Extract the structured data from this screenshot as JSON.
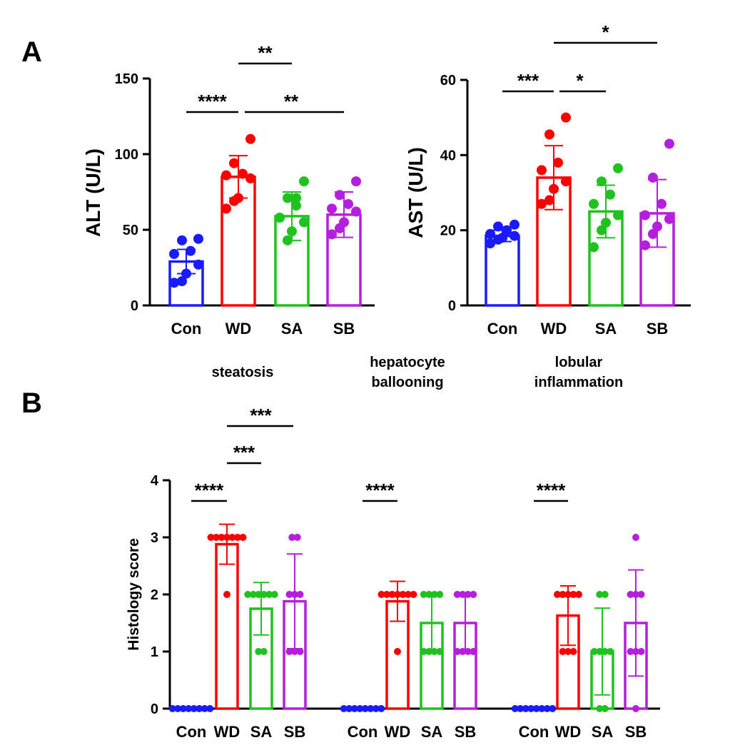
{
  "panels": {
    "a": "A",
    "b": "B"
  },
  "colors": {
    "Con": "#1a1aff",
    "WD": "#ff0000",
    "SA": "#1fc21f",
    "SB": "#b41edc"
  },
  "chart_data": [
    {
      "type": "bar",
      "panel": "A",
      "ylabel": "ALT (U/L)",
      "ylim": [
        0,
        150
      ],
      "yticks": [
        "0",
        "50",
        "100",
        "150"
      ],
      "categories": [
        "Con",
        "WD",
        "SA",
        "SB"
      ],
      "values": [
        29,
        85,
        59,
        60
      ],
      "sd": [
        8,
        14,
        16,
        15
      ],
      "points": [
        [
          44,
          43,
          36,
          34,
          27,
          21,
          16,
          15
        ],
        [
          110,
          94,
          87,
          86,
          84,
          71,
          69,
          64
        ],
        [
          82,
          71,
          71,
          66,
          58,
          55,
          49,
          43
        ],
        [
          82,
          73,
          67,
          64,
          62,
          55,
          51,
          47
        ]
      ],
      "significance": [
        {
          "from": "Con",
          "to": "WD",
          "label": "****"
        },
        {
          "from": "WD",
          "to": "SA",
          "label": "**"
        },
        {
          "from": "WD",
          "to": "SB",
          "label": "**"
        }
      ]
    },
    {
      "type": "bar",
      "panel": "A",
      "ylabel": "AST (U/L)",
      "ylim": [
        0,
        60
      ],
      "yticks": [
        "0",
        "20",
        "40",
        "60"
      ],
      "categories": [
        "Con",
        "WD",
        "SA",
        "SB"
      ],
      "values": [
        18.5,
        34,
        25,
        24.5
      ],
      "sd": [
        1.5,
        8.5,
        7,
        9
      ],
      "points": [
        [
          21.5,
          21,
          20,
          19,
          18.5,
          18,
          17.5,
          16.5
        ],
        [
          50,
          45.5,
          38,
          36,
          33,
          31,
          28,
          27
        ],
        [
          36.5,
          33,
          29.5,
          27,
          24,
          22,
          20,
          15.5
        ],
        [
          43,
          34,
          27,
          24,
          23,
          21,
          19,
          16
        ]
      ],
      "significance": [
        {
          "from": "Con",
          "to": "WD",
          "label": "***"
        },
        {
          "from": "WD",
          "to": "SA",
          "label": "*"
        },
        {
          "from": "WD",
          "to": "SB",
          "label": "*"
        }
      ]
    },
    {
      "type": "bar",
      "panel": "B",
      "ylabel": "Histology score",
      "ylim": [
        0,
        4
      ],
      "yticks": [
        "0",
        "1",
        "2",
        "3",
        "4"
      ],
      "groups": [
        {
          "title": "steatosis",
          "categories": [
            "Con",
            "WD",
            "SA",
            "SB"
          ],
          "values": [
            0,
            2.88,
            1.75,
            1.88
          ],
          "sd": [
            0,
            0.35,
            0.46,
            0.83
          ],
          "points": [
            [
              0,
              0,
              0,
              0,
              0,
              0,
              0,
              0
            ],
            [
              3,
              3,
              3,
              3,
              3,
              3,
              3,
              2
            ],
            [
              2,
              2,
              2,
              2,
              2,
              2,
              1,
              1
            ],
            [
              3,
              3,
              2,
              2,
              2,
              1,
              1,
              1
            ]
          ],
          "significance": [
            {
              "from": "Con",
              "to": "WD",
              "label": "****"
            },
            {
              "from": "WD",
              "to": "SA",
              "label": "***"
            },
            {
              "from": "WD",
              "to": "SB",
              "label": "***"
            }
          ]
        },
        {
          "title": "hepatocyte ballooning",
          "title_lines": [
            "hepatocyte",
            "ballooning"
          ],
          "categories": [
            "Con",
            "WD",
            "SA",
            "SB"
          ],
          "values": [
            0,
            1.88,
            1.5,
            1.5
          ],
          "sd": [
            0,
            0.35,
            0.53,
            0.53
          ],
          "points": [
            [
              0,
              0,
              0,
              0,
              0,
              0,
              0,
              0
            ],
            [
              2,
              2,
              2,
              2,
              2,
              2,
              2,
              1
            ],
            [
              2,
              2,
              2,
              2,
              1,
              1,
              1,
              1
            ],
            [
              2,
              2,
              2,
              2,
              1,
              1,
              1,
              1
            ]
          ],
          "significance": [
            {
              "from": "Con",
              "to": "WD",
              "label": "****"
            }
          ]
        },
        {
          "title": "lobular inflammation",
          "title_lines": [
            "lobular",
            "inflammation"
          ],
          "categories": [
            "Con",
            "WD",
            "SA",
            "SB"
          ],
          "values": [
            0,
            1.63,
            1.0,
            1.5
          ],
          "sd": [
            0,
            0.52,
            0.76,
            0.93
          ],
          "points": [
            [
              0,
              0,
              0,
              0,
              0,
              0,
              0,
              0
            ],
            [
              2,
              2,
              2,
              2,
              2,
              1,
              1,
              1
            ],
            [
              2,
              2,
              1,
              1,
              1,
              1,
              0,
              0
            ],
            [
              3,
              2,
              2,
              2,
              1,
              1,
              1,
              0
            ]
          ],
          "significance": [
            {
              "from": "Con",
              "to": "WD",
              "label": "****"
            }
          ]
        }
      ]
    }
  ]
}
